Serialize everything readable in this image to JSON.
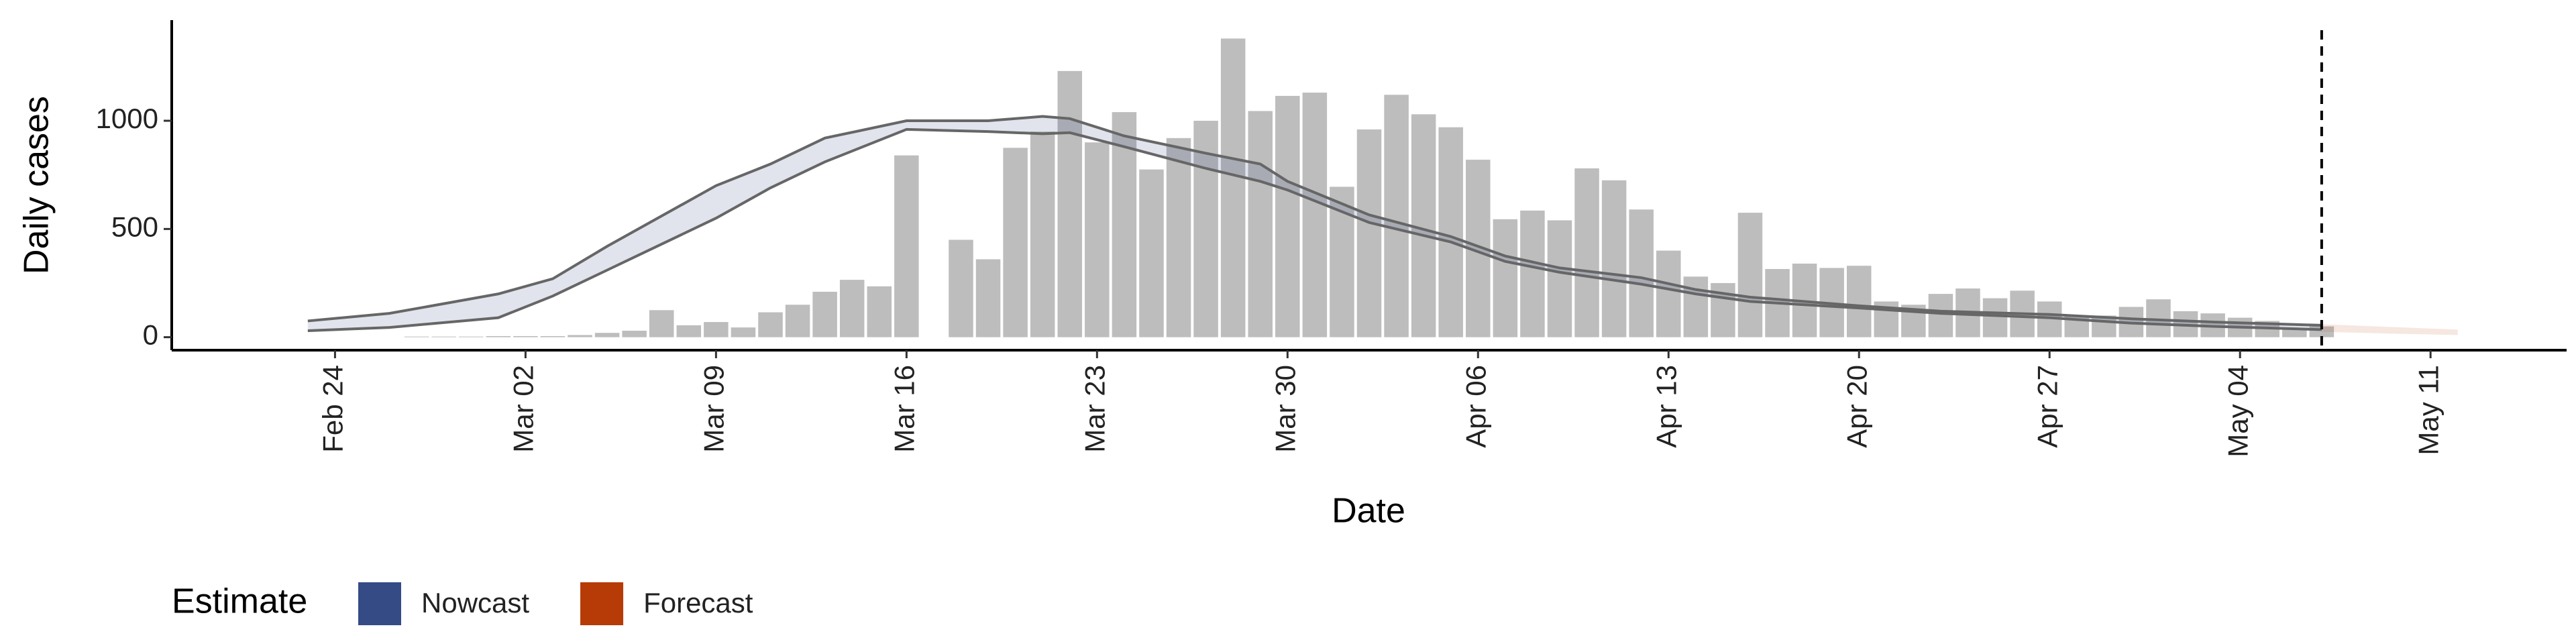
{
  "chart_data": {
    "type": "bar",
    "y_label": "Daily cases",
    "x_label": "Date",
    "legend_title": "Estimate",
    "bar_color": "#bdbdbd",
    "x": [
      "Feb 27",
      "Feb 28",
      "Feb 29",
      "Mar 01",
      "Mar 02",
      "Mar 03",
      "Mar 04",
      "Mar 05",
      "Mar 06",
      "Mar 07",
      "Mar 08",
      "Mar 09",
      "Mar 10",
      "Mar 11",
      "Mar 12",
      "Mar 13",
      "Mar 14",
      "Mar 15",
      "Mar 16",
      "Mar 17",
      "Mar 18",
      "Mar 19",
      "Mar 20",
      "Mar 21",
      "Mar 22",
      "Mar 23",
      "Mar 24",
      "Mar 25",
      "Mar 26",
      "Mar 27",
      "Mar 28",
      "Mar 29",
      "Mar 30",
      "Mar 31",
      "Apr 01",
      "Apr 02",
      "Apr 03",
      "Apr 04",
      "Apr 05",
      "Apr 06",
      "Apr 07",
      "Apr 08",
      "Apr 09",
      "Apr 10",
      "Apr 11",
      "Apr 12",
      "Apr 13",
      "Apr 14",
      "Apr 15",
      "Apr 16",
      "Apr 17",
      "Apr 18",
      "Apr 19",
      "Apr 20",
      "Apr 21",
      "Apr 22",
      "Apr 23",
      "Apr 24",
      "Apr 25",
      "Apr 26",
      "Apr 27",
      "Apr 28",
      "Apr 29",
      "Apr 30",
      "May 01",
      "May 02",
      "May 03",
      "May 04",
      "May 05",
      "May 06",
      "May 07"
    ],
    "values": [
      3,
      3,
      3,
      5,
      5,
      5,
      10,
      20,
      30,
      125,
      55,
      70,
      45,
      115,
      150,
      210,
      265,
      235,
      840,
      null,
      450,
      360,
      875,
      950,
      1230,
      900,
      1040,
      775,
      920,
      1000,
      1380,
      1045,
      1115,
      1130,
      695,
      960,
      1120,
      1030,
      970,
      820,
      545,
      585,
      540,
      780,
      725,
      590,
      400,
      280,
      250,
      575,
      315,
      340,
      320,
      330,
      165,
      150,
      200,
      225,
      180,
      215,
      165,
      100,
      100,
      140,
      175,
      120,
      110,
      90,
      75,
      40,
      50
    ],
    "series": [
      {
        "name": "Nowcast",
        "color": "#344b86",
        "x": [
          "Feb 23",
          "Feb 26",
          "Mar 01",
          "Mar 03",
          "Mar 05",
          "Mar 09",
          "Mar 11",
          "Mar 13",
          "Mar 16",
          "Mar 19",
          "Mar 21",
          "Mar 22",
          "Mar 24",
          "Mar 27",
          "Mar 29",
          "Mar 30",
          "Apr 02",
          "Apr 05",
          "Apr 07",
          "Apr 09",
          "Apr 12",
          "Apr 14",
          "Apr 16",
          "Apr 20",
          "Apr 23",
          "Apr 27",
          "Apr 30",
          "May 03",
          "May 07"
        ],
        "upper": [
          75,
          110,
          200,
          270,
          420,
          700,
          800,
          920,
          1000,
          1000,
          1020,
          1010,
          930,
          850,
          800,
          720,
          565,
          465,
          375,
          320,
          275,
          220,
          185,
          145,
          120,
          105,
          85,
          70,
          55
        ],
        "lower": [
          30,
          45,
          90,
          190,
          310,
          550,
          690,
          810,
          960,
          950,
          940,
          945,
          880,
          780,
          720,
          680,
          530,
          440,
          350,
          300,
          245,
          200,
          165,
          135,
          110,
          90,
          65,
          50,
          35
        ]
      },
      {
        "name": "Forecast",
        "color": "#b63b07",
        "x": [
          "May 07",
          "May 10",
          "May 12"
        ],
        "upper": [
          60,
          45,
          35
        ],
        "lower": [
          25,
          15,
          10
        ]
      }
    ],
    "vline": "May 07",
    "xlim": [
      "Feb 18",
      "May 16"
    ],
    "xticks": [
      "Feb 24",
      "Mar 02",
      "Mar 09",
      "Mar 16",
      "Mar 23",
      "Mar 30",
      "Apr 06",
      "Apr 13",
      "Apr 20",
      "Apr 27",
      "May 04",
      "May 11"
    ],
    "ylim": [
      -60,
      1465
    ],
    "yticks": [
      0,
      500,
      1000
    ]
  }
}
